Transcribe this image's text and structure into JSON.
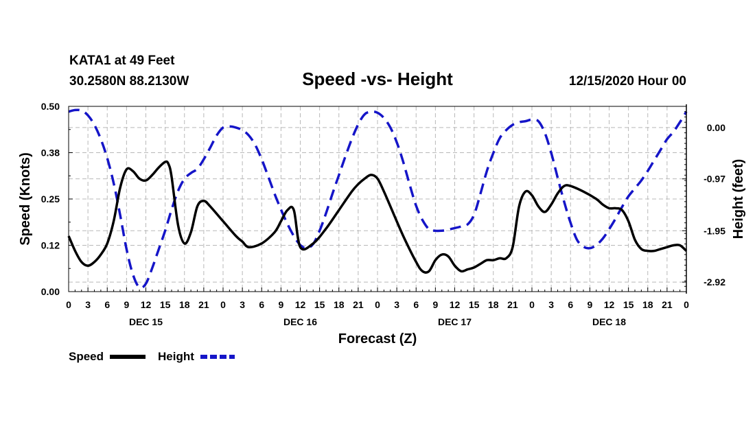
{
  "header": {
    "station": "KATA1 at 49 Feet",
    "coords": "30.2580N 88.2130W",
    "title": "Speed -vs- Height",
    "run": "12/15/2020 Hour 00"
  },
  "chart_data": {
    "type": "line",
    "title": "Speed -vs- Height",
    "xlabel": "Forecast (Z)",
    "ylabel_left": "Speed (Knots)",
    "ylabel_right": "Height (feet)",
    "x_range_hours": [
      0,
      96
    ],
    "x_ticks": [
      {
        "h": 0,
        "label": "0"
      },
      {
        "h": 3,
        "label": "3"
      },
      {
        "h": 6,
        "label": "6"
      },
      {
        "h": 9,
        "label": "9"
      },
      {
        "h": 12,
        "label": "12"
      },
      {
        "h": 15,
        "label": "15"
      },
      {
        "h": 18,
        "label": "18"
      },
      {
        "h": 21,
        "label": "21"
      },
      {
        "h": 24,
        "label": "0"
      },
      {
        "h": 27,
        "label": "3"
      },
      {
        "h": 30,
        "label": "6"
      },
      {
        "h": 33,
        "label": "9"
      },
      {
        "h": 36,
        "label": "12"
      },
      {
        "h": 39,
        "label": "15"
      },
      {
        "h": 42,
        "label": "18"
      },
      {
        "h": 45,
        "label": "21"
      },
      {
        "h": 48,
        "label": "0"
      },
      {
        "h": 51,
        "label": "3"
      },
      {
        "h": 54,
        "label": "6"
      },
      {
        "h": 57,
        "label": "9"
      },
      {
        "h": 60,
        "label": "12"
      },
      {
        "h": 63,
        "label": "15"
      },
      {
        "h": 66,
        "label": "18"
      },
      {
        "h": 69,
        "label": "21"
      },
      {
        "h": 72,
        "label": "0"
      },
      {
        "h": 75,
        "label": "3"
      },
      {
        "h": 78,
        "label": "6"
      },
      {
        "h": 81,
        "label": "9"
      },
      {
        "h": 84,
        "label": "12"
      },
      {
        "h": 87,
        "label": "15"
      },
      {
        "h": 90,
        "label": "18"
      },
      {
        "h": 93,
        "label": "21"
      },
      {
        "h": 96,
        "label": "0"
      }
    ],
    "day_labels": [
      {
        "h": 12,
        "label": "DEC 15"
      },
      {
        "h": 36,
        "label": "DEC 16"
      },
      {
        "h": 60,
        "label": "DEC 17"
      },
      {
        "h": 84,
        "label": "DEC 18"
      }
    ],
    "y_left": {
      "min": 0,
      "max": 0.5,
      "ticks": [
        0.0,
        0.125,
        0.25,
        0.375,
        0.5
      ],
      "tick_labels": [
        "0.00",
        "0.12",
        "0.25",
        "0.38",
        "0.50"
      ]
    },
    "y_right": {
      "min": -3.1,
      "max": 0.4,
      "ticks": [
        0.0,
        -0.97,
        -1.95,
        -2.92
      ],
      "tick_labels": [
        "0.00",
        "-0.97",
        "-1.95",
        "-2.92"
      ]
    },
    "grid": true,
    "legend": {
      "position": "bottom-left"
    },
    "series": [
      {
        "name": "Speed",
        "axis": "left",
        "color": "#000000",
        "style": "solid",
        "x": [
          0,
          1,
          2,
          3,
          4,
          5,
          6,
          7,
          8,
          9,
          10,
          11,
          12,
          13,
          14,
          15,
          15.5,
          16,
          17,
          18,
          19,
          20,
          21,
          22,
          24,
          26,
          27,
          28,
          30,
          32,
          33,
          34,
          35,
          36,
          38,
          40,
          42,
          44,
          45,
          46,
          47,
          48,
          49,
          50,
          52,
          54,
          55,
          56,
          57,
          58,
          59,
          60,
          61,
          62,
          63,
          64,
          65,
          66,
          67,
          68,
          69,
          70,
          71,
          72,
          73,
          74,
          75,
          76,
          77,
          78,
          80,
          82,
          83,
          84,
          85,
          86,
          87,
          88,
          89,
          90,
          91,
          92,
          93,
          94,
          95,
          96
        ],
        "values": [
          0.15,
          0.11,
          0.08,
          0.07,
          0.08,
          0.1,
          0.13,
          0.19,
          0.28,
          0.33,
          0.325,
          0.305,
          0.3,
          0.315,
          0.335,
          0.35,
          0.345,
          0.31,
          0.18,
          0.13,
          0.16,
          0.23,
          0.245,
          0.23,
          0.19,
          0.15,
          0.135,
          0.12,
          0.13,
          0.16,
          0.19,
          0.22,
          0.22,
          0.12,
          0.13,
          0.17,
          0.22,
          0.27,
          0.29,
          0.305,
          0.315,
          0.305,
          0.27,
          0.23,
          0.15,
          0.08,
          0.055,
          0.055,
          0.085,
          0.1,
          0.095,
          0.07,
          0.055,
          0.06,
          0.065,
          0.075,
          0.085,
          0.085,
          0.09,
          0.09,
          0.12,
          0.23,
          0.27,
          0.26,
          0.23,
          0.215,
          0.235,
          0.265,
          0.285,
          0.285,
          0.27,
          0.25,
          0.235,
          0.225,
          0.225,
          0.22,
          0.19,
          0.14,
          0.115,
          0.11,
          0.11,
          0.115,
          0.12,
          0.125,
          0.125,
          0.11
        ]
      },
      {
        "name": "Height",
        "axis": "right",
        "color": "#1515c8",
        "style": "dashed",
        "x": [
          0,
          1,
          2,
          3,
          4,
          5,
          6,
          7,
          8,
          9,
          10,
          11,
          12,
          13,
          14,
          15,
          16,
          17,
          18,
          19,
          20,
          21,
          22,
          23,
          24,
          25,
          26,
          27,
          28,
          29,
          30,
          31,
          32,
          33,
          34,
          35,
          36,
          37,
          38,
          39,
          40,
          41,
          42,
          43,
          44,
          45,
          46,
          47,
          48,
          49,
          50,
          51,
          52,
          53,
          54,
          55,
          56,
          57,
          58,
          59,
          60,
          61,
          62,
          63,
          64,
          65,
          66,
          67,
          68,
          69,
          70,
          71,
          72,
          73,
          74,
          75,
          76,
          77,
          78,
          79,
          80,
          81,
          82,
          83,
          84,
          85,
          86,
          87,
          88,
          89,
          90,
          91,
          92,
          93,
          94,
          95,
          96
        ],
        "values": [
          0.3,
          0.33,
          0.32,
          0.23,
          0.05,
          -0.22,
          -0.58,
          -1.05,
          -1.65,
          -2.3,
          -2.78,
          -3.02,
          -2.95,
          -2.65,
          -2.3,
          -1.95,
          -1.55,
          -1.2,
          -0.97,
          -0.86,
          -0.78,
          -0.6,
          -0.38,
          -0.15,
          0.0,
          0.02,
          0.0,
          -0.05,
          -0.15,
          -0.33,
          -0.6,
          -0.92,
          -1.25,
          -1.55,
          -1.82,
          -2.05,
          -2.22,
          -2.28,
          -2.2,
          -1.95,
          -1.62,
          -1.25,
          -0.9,
          -0.55,
          -0.22,
          0.06,
          0.25,
          0.3,
          0.28,
          0.18,
          0.0,
          -0.28,
          -0.65,
          -1.08,
          -1.48,
          -1.75,
          -1.92,
          -1.95,
          -1.95,
          -1.93,
          -1.9,
          -1.87,
          -1.83,
          -1.65,
          -1.25,
          -0.82,
          -0.48,
          -0.2,
          -0.05,
          0.05,
          0.1,
          0.12,
          0.15,
          0.12,
          -0.1,
          -0.48,
          -0.95,
          -1.4,
          -1.8,
          -2.12,
          -2.25,
          -2.28,
          -2.22,
          -2.1,
          -1.92,
          -1.72,
          -1.5,
          -1.3,
          -1.15,
          -1.0,
          -0.82,
          -0.62,
          -0.42,
          -0.22,
          -0.08,
          0.1,
          0.3
        ]
      }
    ]
  }
}
